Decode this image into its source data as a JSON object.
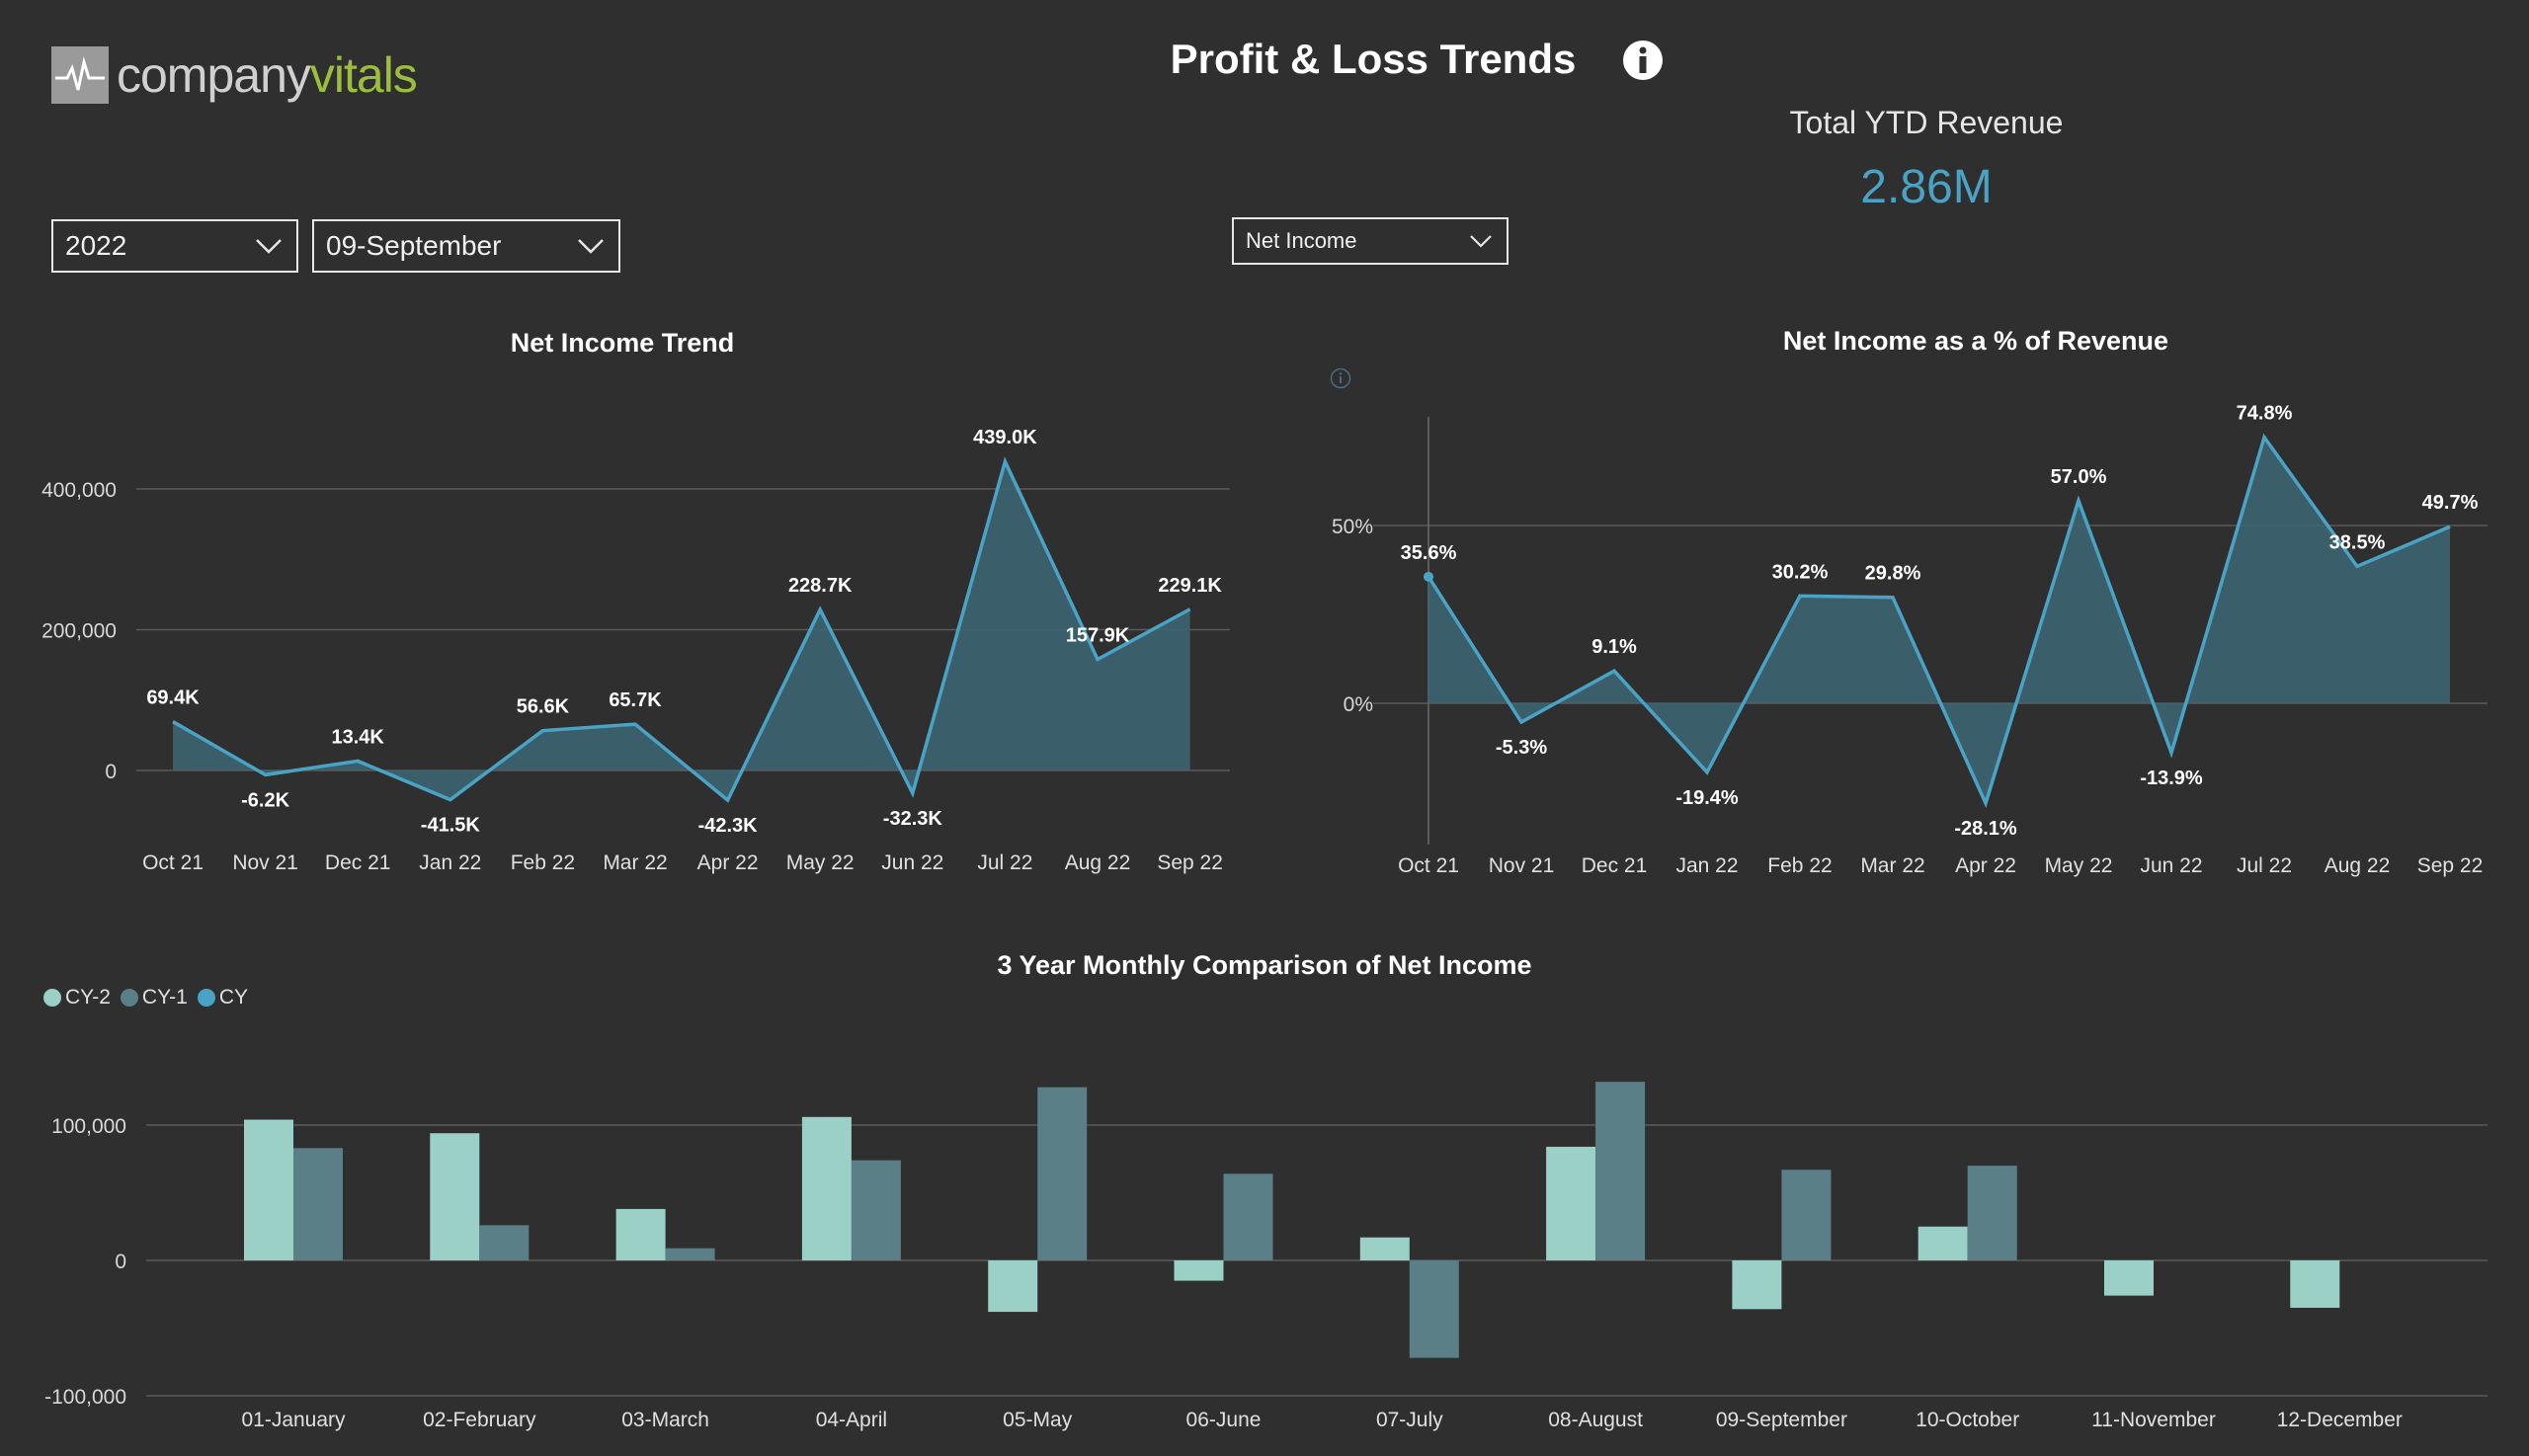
{
  "header": {
    "logo_part1": "company",
    "logo_part2": "vitals",
    "title": "Profit & Loss Trends"
  },
  "kpi": {
    "label": "Total YTD Revenue",
    "value": "2.86M"
  },
  "filters": {
    "year": "2022",
    "month": "09-September",
    "metric": "Net Income"
  },
  "colors": {
    "background": "#2f2f2f",
    "line": "#4aa3c4",
    "area": "#3d6472",
    "cy2": "#9ad0c6",
    "cy1": "#5a7f86",
    "cy": "#4aa3c4",
    "brand_green": "#9bbf3b"
  },
  "icons": {
    "info": "info-icon",
    "dropdown": "chevron-down-icon",
    "logo": "heartbeat-icon"
  },
  "chart_data": [
    {
      "type": "area",
      "title": "Net Income Trend",
      "categories": [
        "Oct 21",
        "Nov 21",
        "Dec 21",
        "Jan 22",
        "Feb 22",
        "Mar 22",
        "Apr 22",
        "May 22",
        "Jun 22",
        "Jul 22",
        "Aug 22",
        "Sep 22"
      ],
      "values": [
        69400,
        -6200,
        13400,
        -41500,
        56600,
        65700,
        -42300,
        228700,
        -32300,
        439000,
        157900,
        229100
      ],
      "data_labels": [
        "69.4K",
        "-6.2K",
        "13.4K",
        "-41.5K",
        "56.6K",
        "65.7K",
        "-42.3K",
        "228.7K",
        "-32.3K",
        "439.0K",
        "157.9K",
        "229.1K"
      ],
      "yticks": [
        0,
        200000,
        400000
      ],
      "ytick_labels": [
        "0",
        "200,000",
        "400,000"
      ],
      "ylim": [
        -70000,
        470000
      ],
      "grid": true
    },
    {
      "type": "area",
      "title": "Net Income as a % of Revenue",
      "categories": [
        "Oct 21",
        "Nov 21",
        "Dec 21",
        "Jan 22",
        "Feb 22",
        "Mar 22",
        "Apr 22",
        "May 22",
        "Jun 22",
        "Jul 22",
        "Aug 22",
        "Sep 22"
      ],
      "values": [
        35.6,
        -5.3,
        9.1,
        -19.4,
        30.2,
        29.8,
        -28.1,
        57.0,
        -13.9,
        74.8,
        38.5,
        49.7
      ],
      "data_labels": [
        "35.6%",
        "-5.3%",
        "9.1%",
        "-19.4%",
        "30.2%",
        "29.8%",
        "-28.1%",
        "57.0%",
        "-13.9%",
        "74.8%",
        "38.5%",
        "49.7%"
      ],
      "yticks": [
        0,
        50
      ],
      "ytick_labels": [
        "0%",
        "50%"
      ],
      "ylim": [
        -38,
        80
      ],
      "grid": true
    },
    {
      "type": "bar",
      "title": "3 Year Monthly Comparison of Net Income",
      "categories": [
        "01-January",
        "02-February",
        "03-March",
        "04-April",
        "05-May",
        "06-June",
        "07-July",
        "08-August",
        "09-September",
        "10-October",
        "11-November",
        "12-December"
      ],
      "series": [
        {
          "name": "CY-2",
          "values": [
            104000,
            94000,
            38000,
            106000,
            -38000,
            -15000,
            17000,
            84000,
            -36000,
            25000,
            -26000,
            -35000
          ]
        },
        {
          "name": "CY-1",
          "values": [
            83000,
            26000,
            9000,
            74000,
            128000,
            64000,
            -72000,
            132000,
            67000,
            70000,
            null,
            null
          ]
        },
        {
          "name": "CY",
          "values": [
            null,
            null,
            null,
            null,
            null,
            null,
            null,
            null,
            null,
            null,
            null,
            null
          ]
        }
      ],
      "yticks": [
        -100000,
        0,
        100000
      ],
      "ytick_labels": [
        "-100,000",
        "0",
        "100,000"
      ],
      "ylim": [
        -100000,
        140000
      ],
      "legend": "top-left",
      "grid": true
    }
  ]
}
